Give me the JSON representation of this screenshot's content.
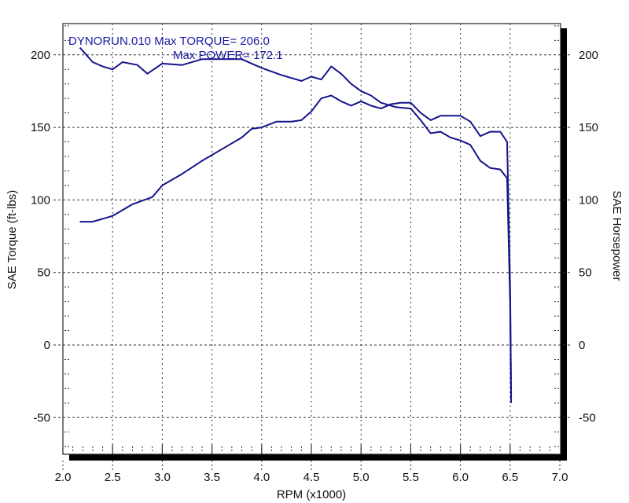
{
  "chart_data": {
    "type": "line",
    "title": "",
    "annotations": {
      "line1": "DYNORUN.010  Max TORQUE= 206.0",
      "line2": "Max POWER= 172.1"
    },
    "xlabel": "RPM (x1000)",
    "ylabel": "SAE Torque (ft-lbs)",
    "y2label": "SAE Horsepower",
    "xlim": [
      2.0,
      7.0
    ],
    "ylim": [
      -75,
      222
    ],
    "y2lim": [
      -75,
      222
    ],
    "x_ticks": [
      "2.0",
      "2.5",
      "3.0",
      "3.5",
      "4.0",
      "4.5",
      "5.0",
      "5.5",
      "6.0",
      "6.5",
      "7.0"
    ],
    "y_ticks": [
      "200",
      "150",
      "100",
      "50",
      "0",
      "-50"
    ],
    "y2_ticks": [
      "200",
      "150",
      "100",
      "50",
      "0",
      "-50"
    ],
    "grid": true,
    "legend": null,
    "series": [
      {
        "name": "SAE Torque (ft-lbs)",
        "color": "#14148c",
        "x": [
          2.17,
          2.3,
          2.4,
          2.5,
          2.6,
          2.75,
          2.85,
          3.0,
          3.2,
          3.4,
          3.6,
          3.8,
          3.9,
          4.0,
          4.2,
          4.4,
          4.5,
          4.6,
          4.7,
          4.8,
          4.9,
          5.0,
          5.1,
          5.2,
          5.35,
          5.5,
          5.6,
          5.7,
          5.8,
          5.9,
          6.0,
          6.1,
          6.2,
          6.3,
          6.4,
          6.47,
          6.5,
          6.51
        ],
        "values": [
          205,
          195,
          192,
          190,
          195,
          193,
          187,
          194,
          193,
          197,
          197,
          197,
          194,
          191,
          186,
          182,
          185,
          183,
          192,
          187,
          180,
          175,
          172,
          167,
          164,
          163,
          155,
          146,
          147,
          143,
          141,
          138,
          127,
          122,
          121,
          115,
          30,
          -40
        ]
      },
      {
        "name": "SAE Horsepower",
        "color": "#14148c",
        "x": [
          2.17,
          2.3,
          2.4,
          2.5,
          2.7,
          2.9,
          3.0,
          3.2,
          3.4,
          3.6,
          3.8,
          3.9,
          4.0,
          4.15,
          4.3,
          4.4,
          4.5,
          4.6,
          4.7,
          4.8,
          4.9,
          5.0,
          5.1,
          5.2,
          5.3,
          5.4,
          5.5,
          5.6,
          5.7,
          5.8,
          5.9,
          6.0,
          6.1,
          6.2,
          6.3,
          6.4,
          6.47,
          6.5,
          6.51
        ],
        "values": [
          85,
          85,
          87,
          89,
          97,
          102,
          110,
          118,
          127,
          135,
          143,
          149,
          150,
          154,
          154,
          155,
          161,
          170,
          172,
          168,
          165,
          168,
          165,
          163,
          166,
          167,
          167,
          160,
          155,
          158,
          158,
          158,
          154,
          144,
          147,
          147,
          140,
          40,
          -35
        ]
      }
    ]
  }
}
